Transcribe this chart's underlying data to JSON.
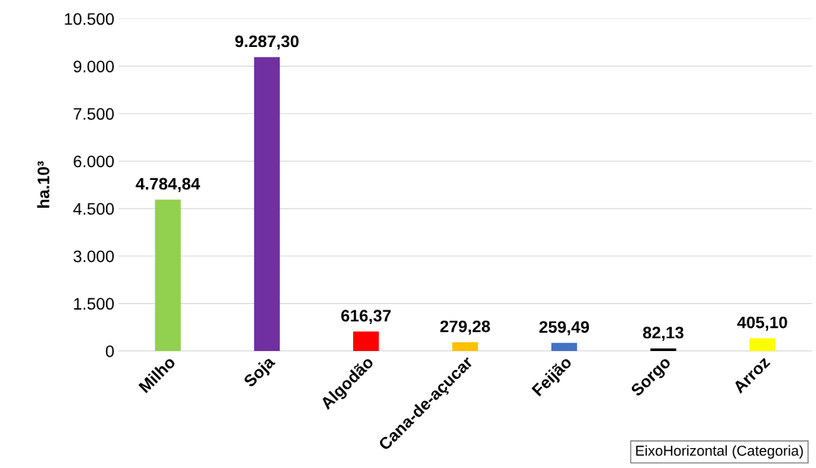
{
  "chart_data": {
    "type": "bar",
    "ylabel": "ha.10³",
    "categories": [
      "Milho",
      "Soja",
      "Algodão",
      "Cana-de-açucar",
      "Feijão",
      "Sorgo",
      "Arroz"
    ],
    "values": [
      4784.84,
      9287.3,
      616.37,
      279.28,
      259.49,
      82.13,
      405.1
    ],
    "colors": [
      "#92d050",
      "#7030a0",
      "#ff0000",
      "#ffc000",
      "#4472c4",
      "#000000",
      "#ffff00"
    ],
    "value_labels": [
      "4.784,84",
      "9.287,30",
      "616,37",
      "279,28",
      "259,49",
      "82,13",
      "405,10"
    ],
    "ylim": [
      0,
      10500
    ],
    "yticks": [
      {
        "value": 0,
        "label": "0"
      },
      {
        "value": 1500,
        "label": "1.500"
      },
      {
        "value": 3000,
        "label": "3.000"
      },
      {
        "value": 4500,
        "label": "4.500"
      },
      {
        "value": 6000,
        "label": "6.000"
      },
      {
        "value": 7500,
        "label": "7.500"
      },
      {
        "value": 9000,
        "label": "9.000"
      },
      {
        "value": 10500,
        "label": "10.500"
      }
    ],
    "grid": "y",
    "annotations": [
      "EixoHorizontal (Categoria)"
    ]
  }
}
